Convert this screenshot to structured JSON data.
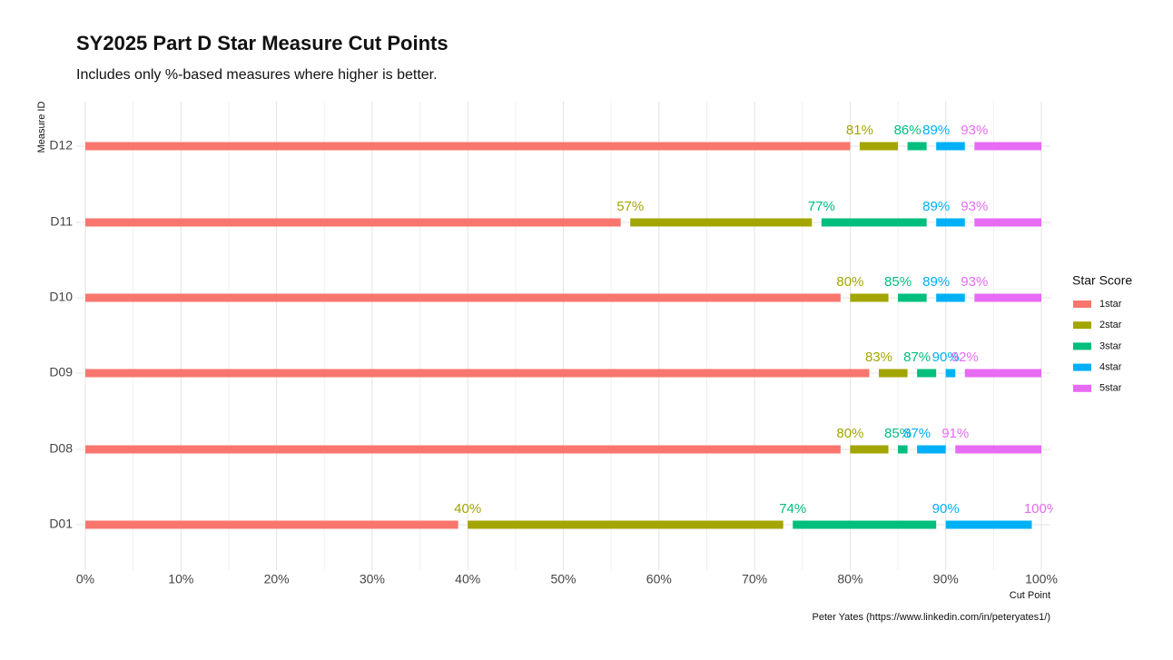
{
  "chart_data": {
    "type": "range-bar",
    "title": "SY2025 Part D Star Measure Cut Points",
    "subtitle": "Includes only %-based measures where higher is better.",
    "y_label": "Measure ID",
    "x_label": "Cut Point",
    "caption": "Peter Yates (https://www.linkedin.com/in/peteryates1/)",
    "legend_title": "Star Score",
    "categories": [
      "D12",
      "D11",
      "D10",
      "D09",
      "D08",
      "D01"
    ],
    "series": [
      {
        "name": "1star",
        "color": "#F8766D",
        "values": [
          0,
          0,
          0,
          0,
          0,
          0
        ],
        "ends": [
          80,
          56,
          79,
          82,
          79,
          39
        ]
      },
      {
        "name": "2star",
        "color": "#A3A500",
        "values": [
          81,
          57,
          80,
          83,
          80,
          40
        ],
        "ends": [
          85,
          76,
          84,
          86,
          84,
          73
        ],
        "value_labels": [
          "81%",
          "57%",
          "80%",
          "83%",
          "80%",
          "40%"
        ]
      },
      {
        "name": "3star",
        "color": "#00BF7D",
        "values": [
          86,
          77,
          85,
          87,
          85,
          74
        ],
        "ends": [
          88,
          88,
          88,
          89,
          86,
          89
        ],
        "value_labels": [
          "86%",
          "77%",
          "85%",
          "87%",
          "85%",
          "74%"
        ]
      },
      {
        "name": "4star",
        "color": "#00B0F6",
        "values": [
          89,
          89,
          89,
          90,
          87,
          90
        ],
        "ends": [
          92,
          92,
          92,
          91,
          90,
          99
        ],
        "value_labels": [
          "89%",
          "89%",
          "89%",
          "90%",
          "87%",
          "90%"
        ]
      },
      {
        "name": "5star",
        "color": "#E76BF3",
        "values": [
          93,
          93,
          93,
          92,
          91,
          100
        ],
        "ends": [
          100,
          100,
          100,
          100,
          100,
          100
        ],
        "value_labels": [
          "93%",
          "93%",
          "93%",
          "92%",
          "91%",
          "100%"
        ]
      }
    ],
    "xlim": [
      0,
      100
    ],
    "xticks": [
      {
        "value": 0,
        "label": "0%"
      },
      {
        "value": 10,
        "label": "10%"
      },
      {
        "value": 20,
        "label": "20%"
      },
      {
        "value": 30,
        "label": "30%"
      },
      {
        "value": 40,
        "label": "40%"
      },
      {
        "value": 50,
        "label": "50%"
      },
      {
        "value": 60,
        "label": "60%"
      },
      {
        "value": 70,
        "label": "70%"
      },
      {
        "value": 80,
        "label": "80%"
      },
      {
        "value": 90,
        "label": "90%"
      },
      {
        "value": 100,
        "label": "100%"
      }
    ],
    "grid": true,
    "legend_position": "right"
  }
}
